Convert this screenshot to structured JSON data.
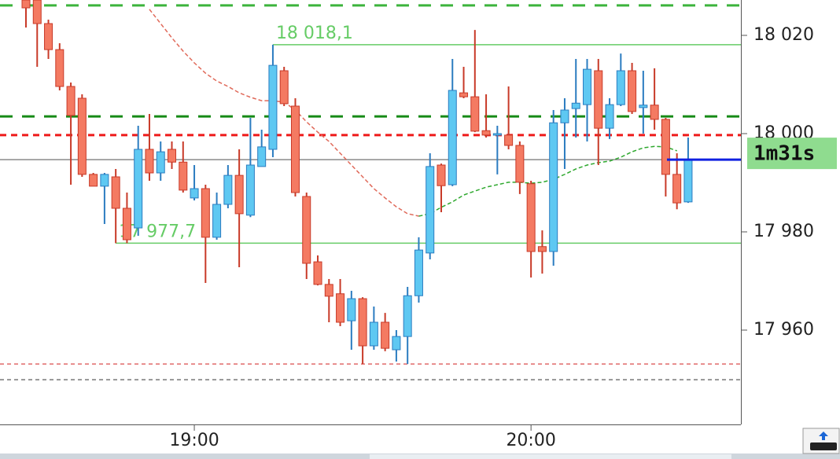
{
  "chart_data": {
    "type": "candlestick",
    "categories": [
      null,
      null,
      null,
      null,
      null,
      null,
      null,
      null,
      null,
      null,
      null,
      null,
      null,
      null,
      null,
      "19:00",
      null,
      null,
      null,
      null,
      null,
      null,
      null,
      null,
      null,
      null,
      null,
      null,
      null,
      null,
      null,
      null,
      null,
      null,
      null,
      null,
      null,
      null,
      null,
      null,
      null,
      null,
      null,
      null,
      null,
      "20:00",
      null,
      null,
      null,
      null,
      null,
      null,
      null,
      null,
      null,
      null,
      null,
      null,
      null,
      null
    ],
    "open": [
      18027.2,
      18027.2,
      18022.4,
      18017.1,
      18009.6,
      18007.2,
      17991.7,
      17989.3,
      17991.2,
      17984.8,
      17980.8,
      17996.8,
      17992.0,
      17996.8,
      17994.2,
      17986.9,
      17988.8,
      17978.9,
      17985.6,
      17991.5,
      17983.4,
      17993.3,
      17996.8,
      18012.8,
      18005.6,
      17987.2,
      17973.9,
      17969.3,
      17967.4,
      17961.9,
      17966.4,
      17956.8,
      17961.6,
      17956.0,
      17958.7,
      17967.0,
      17975.7,
      17993.6,
      17989.6,
      18008.3,
      18007.5,
      18000.6,
      17999.7,
      17999.7,
      17997.6,
      17989.8,
      17977.0,
      17976.0,
      18002.2,
      18005.1,
      18005.9,
      18012.8,
      18001.1,
      18005.9,
      18012.8,
      18005.3,
      18005.8,
      18002.9,
      17991.7,
      17986.1
    ],
    "high": [
      18027.2,
      18027.2,
      18023.2,
      18018.4,
      18010.4,
      18008.0,
      17992.0,
      17992.0,
      17992.8,
      17988.0,
      18001.6,
      18004.0,
      17998.4,
      17998.4,
      17998.4,
      17993.6,
      17989.6,
      17988.0,
      17993.6,
      17996.8,
      18003.2,
      18000.8,
      18018.1,
      18013.6,
      18007.2,
      17988.0,
      17975.2,
      17970.4,
      17970.4,
      17968.0,
      17966.7,
      17964.8,
      17963.5,
      17960.0,
      17968.8,
      17978.9,
      17996.0,
      17993.9,
      18015.2,
      18013.6,
      18021.1,
      18008.0,
      18001.6,
      18009.6,
      17998.4,
      17990.4,
      17980.3,
      18004.8,
      18007.2,
      18015.2,
      18015.2,
      18015.2,
      18007.2,
      18016.3,
      18014.4,
      18012.8,
      18013.3,
      18003.2,
      17996.0,
      17999.2
    ],
    "low": [
      18021.6,
      18013.6,
      18015.2,
      18008.8,
      17989.6,
      17991.2,
      17989.3,
      17981.6,
      17977.7,
      17977.7,
      17979.2,
      17990.4,
      17990.4,
      17992.8,
      17988.0,
      17986.4,
      17969.6,
      17978.4,
      17984.8,
      17972.8,
      17983.0,
      17993.3,
      17995.2,
      18005.6,
      17987.2,
      17970.4,
      17969.1,
      17961.6,
      17960.8,
      17956.0,
      17953.1,
      17956.0,
      17955.7,
      17953.6,
      17953.1,
      17965.6,
      17974.4,
      17984.0,
      17989.3,
      18007.2,
      18000.3,
      17999.2,
      17991.7,
      17996.8,
      17987.7,
      17970.7,
      17971.5,
      17973.1,
      17992.8,
      17999.2,
      17998.4,
      17993.6,
      17998.9,
      18005.6,
      18004.0,
      18000.0,
      18000.8,
      17987.2,
      17984.6,
      17985.9
    ],
    "close": [
      18025.6,
      18022.4,
      18017.1,
      18009.6,
      18003.7,
      17991.7,
      17989.3,
      17991.7,
      17984.8,
      17978.4,
      17996.8,
      17992.0,
      17996.3,
      17994.2,
      17988.5,
      17988.8,
      17978.9,
      17985.6,
      17991.5,
      17983.7,
      17993.6,
      17997.3,
      18013.9,
      18006.1,
      17988.0,
      17973.6,
      17969.3,
      17966.9,
      17961.6,
      17966.4,
      17956.8,
      17961.6,
      17956.3,
      17958.7,
      17967.0,
      17976.3,
      17993.3,
      17989.4,
      18008.8,
      18007.5,
      18000.5,
      17999.7,
      18000.0,
      17997.6,
      17990.1,
      17976.0,
      17976.0,
      18002.2,
      18004.8,
      18006.2,
      18013.1,
      18001.1,
      18005.9,
      18012.8,
      18004.5,
      18005.8,
      18002.9,
      17991.7,
      17985.9,
      17994.7
    ],
    "up_color": "#5ec8f2",
    "down_color": "#f47a62",
    "averages": [
      {
        "color": "#e06a5a",
        "values": [
          null,
          null,
          null,
          null,
          null,
          null,
          null,
          null,
          null,
          null,
          null,
          18025.3,
          18022.4,
          18019.5,
          18016.8,
          18014.4,
          18012.3,
          18010.7,
          18009.6,
          18008.3,
          18007.4,
          18006.7,
          18006.7,
          18006.4,
          18004.8,
          18002.4,
          18000.3,
          17998.4,
          17996.0,
          17993.6,
          17991.2,
          17988.8,
          17986.9,
          17985.1,
          17983.7,
          17983.2,
          null,
          null,
          null,
          null,
          null,
          null,
          null,
          null,
          null,
          null,
          null,
          null,
          null,
          null,
          null,
          null,
          null,
          null,
          null,
          null,
          null,
          null,
          null,
          null
        ]
      },
      {
        "color": "#2ea82e",
        "values": [
          null,
          null,
          null,
          null,
          null,
          null,
          null,
          null,
          null,
          null,
          null,
          null,
          null,
          null,
          null,
          null,
          null,
          null,
          null,
          null,
          null,
          null,
          null,
          null,
          null,
          null,
          null,
          null,
          null,
          null,
          null,
          null,
          null,
          null,
          null,
          17983.2,
          17983.7,
          17985.0,
          17986.1,
          17987.5,
          17988.3,
          17989.1,
          17989.6,
          17990.1,
          17990.1,
          17989.9,
          17990.1,
          17990.7,
          17991.7,
          17992.8,
          17993.6,
          17994.1,
          17994.4,
          17995.2,
          17996.3,
          17997.1,
          17997.4,
          17997.3,
          17996.5,
          null
        ]
      }
    ],
    "levels": [
      {
        "value": 18026.1,
        "color": "#3cb43c",
        "style": "dashed"
      },
      {
        "value": 18018.1,
        "label": "18 018,1",
        "color": "#66cc66",
        "style": "solid"
      },
      {
        "value": 18003.5,
        "color": "#168a16",
        "style": "dashed"
      },
      {
        "value": 17999.7,
        "color": "#ee1a1a",
        "style": "dotted"
      },
      {
        "value": 17994.7,
        "color": "#8a8a8a",
        "style": "solid"
      },
      {
        "value": 17977.7,
        "label": "17 977,7",
        "color": "#66cc66",
        "style": "solid"
      },
      {
        "value": 17953.1,
        "color": "#e06a6a",
        "style": "thin"
      },
      {
        "value": 17949.9,
        "color": "#777777",
        "style": "thin"
      }
    ],
    "countdown": "1m31s",
    "ylim": [
      17940.8,
      18027.2
    ],
    "yticks": [
      {
        "value": 17960,
        "label": "17 960"
      },
      {
        "value": 17980,
        "label": "17 980"
      },
      {
        "value": 18000,
        "label": "18 000"
      },
      {
        "value": 18020,
        "label": "18 020"
      }
    ]
  }
}
